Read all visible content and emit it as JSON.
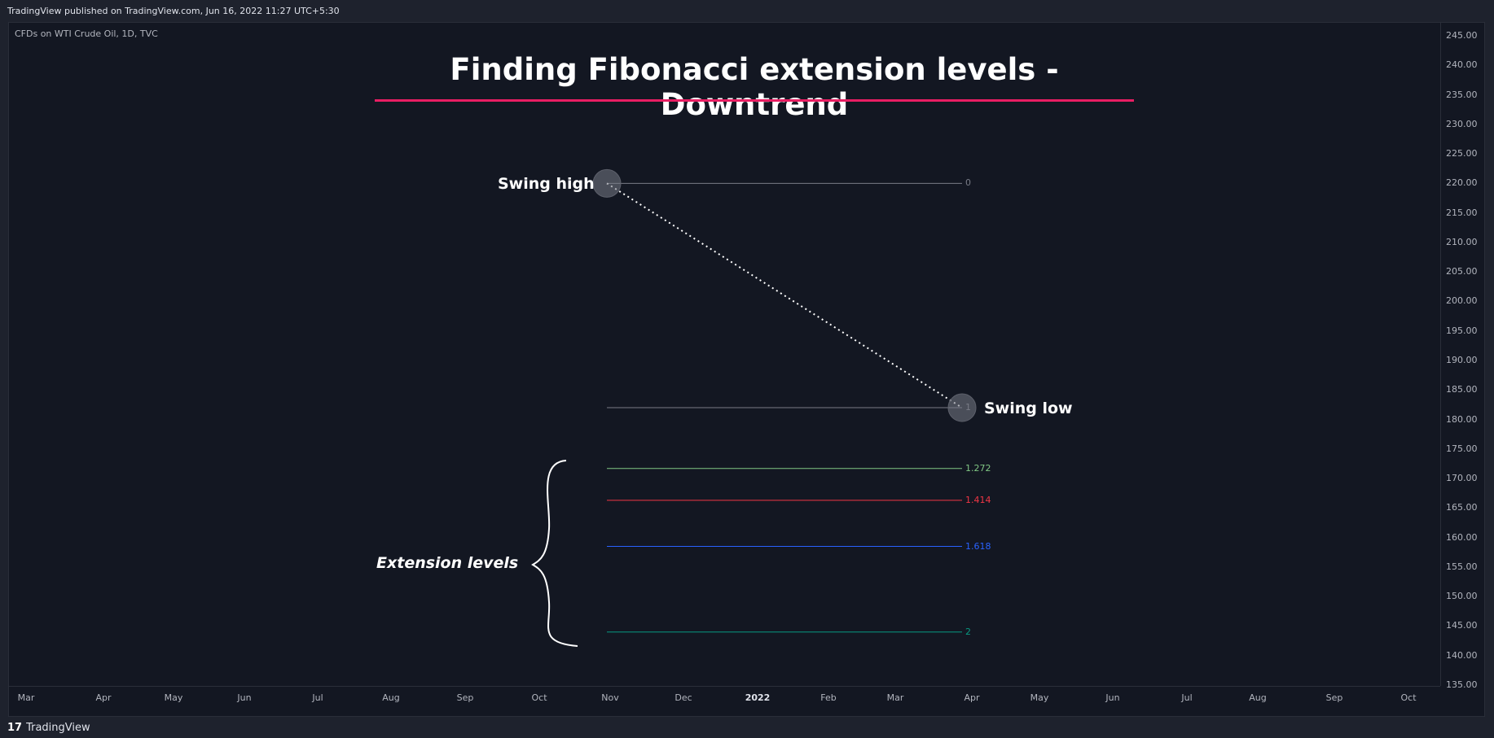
{
  "header": {
    "publisher": "TradingView published on TradingView.com, Jun 16, 2022 11:27 UTC+5:30"
  },
  "symbol": "CFDs on WTI Crude Oil, 1D, TVC",
  "footer": {
    "logo_glyph": "17",
    "brand": "TradingView"
  },
  "chart_data": {
    "type": "line",
    "title": "Finding Fibonacci extension levels - Downtrend",
    "ylim": [
      135,
      245
    ],
    "y_ticks": [
      "245.00",
      "240.00",
      "235.00",
      "230.00",
      "225.00",
      "220.00",
      "215.00",
      "210.00",
      "205.00",
      "200.00",
      "195.00",
      "190.00",
      "185.00",
      "180.00",
      "175.00",
      "170.00",
      "165.00",
      "160.00",
      "155.00",
      "150.00",
      "145.00",
      "140.00",
      "135.00"
    ],
    "x_ticks": [
      "Mar",
      "Apr",
      "May",
      "Jun",
      "Jul",
      "Aug",
      "Sep",
      "Oct",
      "Nov",
      "Dec",
      "2022",
      "Feb",
      "Mar",
      "Apr",
      "May",
      "Jun",
      "Jul",
      "Aug",
      "Sep",
      "Oct"
    ],
    "swing": {
      "high": {
        "label": "Swing high",
        "value": 220
      },
      "low": {
        "label": "Swing low",
        "value": 182
      }
    },
    "fib_levels": [
      {
        "ratio": "0",
        "value": 220,
        "color": "#787b86"
      },
      {
        "ratio": "1",
        "value": 182,
        "color": "#787b86"
      },
      {
        "ratio": "1.272",
        "value": 171.7,
        "color": "#81c784"
      },
      {
        "ratio": "1.414",
        "value": 166.3,
        "color": "#f23645"
      },
      {
        "ratio": "1.618",
        "value": 158.5,
        "color": "#2962ff"
      },
      {
        "ratio": "2",
        "value": 144,
        "color": "#089981"
      }
    ],
    "annotation": "Extension levels",
    "accent_color": "#e91e63"
  }
}
